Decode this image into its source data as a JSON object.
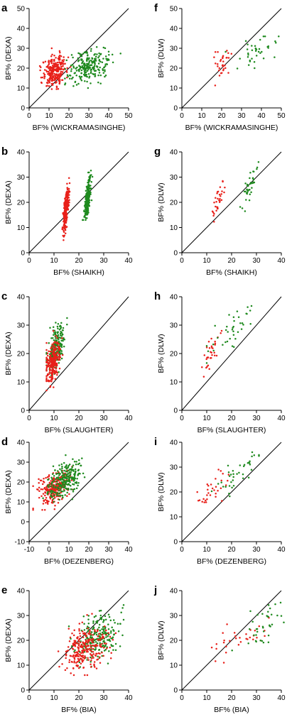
{
  "colors": {
    "group_1": "#e8201a",
    "group_2": "#1f8a1f"
  },
  "chart_data": [
    {
      "letter": "a",
      "type": "scatter",
      "xlabel": "BF% (WICKRAMASINGHE)",
      "ylabel": "BF% (DEXA)",
      "xlim": [
        0,
        50
      ],
      "ylim": [
        0,
        50
      ],
      "xticks": [
        "0",
        "10",
        "20",
        "30",
        "40",
        "50"
      ],
      "yticks": [
        "0",
        "10",
        "20",
        "30",
        "40",
        "50"
      ],
      "identity_line": true,
      "series": [
        {
          "color_key": "group_1",
          "cluster": {
            "cx": 13,
            "cy": 19,
            "sx": 3,
            "sy": 4,
            "r": 0.25,
            "n": 260,
            "xmin": 5,
            "xmax": 25,
            "ymin": 8,
            "ymax": 30
          }
        },
        {
          "color_key": "group_2",
          "cluster": {
            "cx": 30,
            "cy": 21,
            "sx": 5,
            "sy": 4,
            "r": 0.3,
            "n": 240,
            "xmin": 18,
            "xmax": 51,
            "ymin": 10,
            "ymax": 35
          }
        }
      ]
    },
    {
      "letter": "f",
      "type": "scatter",
      "xlabel": "BF% (WICKRAMASINGHE)",
      "ylabel": "BF% (DLW)",
      "xlim": [
        0,
        50
      ],
      "ylim": [
        0,
        50
      ],
      "xticks": [
        "0",
        "10",
        "20",
        "30",
        "40",
        "50"
      ],
      "yticks": [
        "0",
        "10",
        "20",
        "30",
        "40",
        "50"
      ],
      "identity_line": true,
      "series": [
        {
          "color_key": "group_1",
          "cluster": {
            "cx": 20,
            "cy": 21,
            "sx": 2.5,
            "sy": 4,
            "r": 0.3,
            "n": 32,
            "xmin": 14,
            "xmax": 27,
            "ymin": 11,
            "ymax": 31
          }
        },
        {
          "color_key": "group_2",
          "cluster": {
            "cx": 35,
            "cy": 26,
            "sx": 6,
            "sy": 5,
            "r": 0.6,
            "n": 38,
            "xmin": 22,
            "xmax": 51,
            "ymin": 14,
            "ymax": 36
          }
        }
      ]
    },
    {
      "letter": "b",
      "type": "scatter",
      "xlabel": "BF% (SHAIKH)",
      "ylabel": "BF% (DEXA)",
      "xlim": [
        0,
        40
      ],
      "ylim": [
        0,
        40
      ],
      "xticks": [
        "0",
        "10",
        "20",
        "30",
        "40"
      ],
      "yticks": [
        "0",
        "10",
        "20",
        "30",
        "40"
      ],
      "identity_line": true,
      "series": [
        {
          "color_key": "group_1",
          "cluster": {
            "cx": 14.8,
            "cy": 17,
            "sx": 0.6,
            "sy": 4.5,
            "r": 0.7,
            "n": 260,
            "xmin": 13,
            "xmax": 17,
            "ymin": 5,
            "ymax": 30
          }
        },
        {
          "color_key": "group_2",
          "cluster": {
            "cx": 23.5,
            "cy": 21,
            "sx": 0.7,
            "sy": 4.5,
            "r": 0.7,
            "n": 240,
            "xmin": 21.5,
            "xmax": 26,
            "ymin": 13,
            "ymax": 35
          }
        }
      ]
    },
    {
      "letter": "g",
      "type": "scatter",
      "xlabel": "BF% (SHAIKH)",
      "ylabel": "BF% (DLW)",
      "xlim": [
        0,
        40
      ],
      "ylim": [
        0,
        40
      ],
      "xticks": [
        "0",
        "10",
        "20",
        "30",
        "40"
      ],
      "yticks": [
        "0",
        "10",
        "20",
        "30",
        "40"
      ],
      "identity_line": true,
      "series": [
        {
          "color_key": "group_1",
          "cluster": {
            "cx": 15,
            "cy": 21,
            "sx": 1.5,
            "sy": 4,
            "r": 0.85,
            "n": 32,
            "xmin": 12,
            "xmax": 19,
            "ymin": 12,
            "ymax": 31
          }
        },
        {
          "color_key": "group_2",
          "cluster": {
            "cx": 27,
            "cy": 26,
            "sx": 1.8,
            "sy": 5,
            "r": 0.85,
            "n": 38,
            "xmin": 23,
            "xmax": 31,
            "ymin": 15,
            "ymax": 36
          }
        }
      ]
    },
    {
      "letter": "c",
      "type": "scatter",
      "xlabel": "BF% (SLAUGHTER)",
      "ylabel": "BF% (DEXA)",
      "xlim": [
        0,
        40
      ],
      "ylim": [
        0,
        40
      ],
      "xticks": [
        "0",
        "10",
        "20",
        "30",
        "40"
      ],
      "yticks": [
        "0",
        "10",
        "20",
        "30",
        "40"
      ],
      "identity_line": true,
      "series": [
        {
          "color_key": "group_2",
          "cluster": {
            "cx": 11,
            "cy": 22,
            "sx": 1.8,
            "sy": 4,
            "r": 0.55,
            "n": 240,
            "xmin": 7,
            "xmax": 22,
            "ymin": 11,
            "ymax": 35
          }
        },
        {
          "color_key": "group_1",
          "cluster": {
            "cx": 9.5,
            "cy": 17,
            "sx": 1.5,
            "sy": 3.5,
            "r": 0.45,
            "n": 260,
            "xmin": 7,
            "xmax": 16,
            "ymin": 7,
            "ymax": 29
          }
        }
      ]
    },
    {
      "letter": "h",
      "type": "scatter",
      "xlabel": "BF% (SLAUGHTER)",
      "ylabel": "BF% (DLW)",
      "xlim": [
        0,
        40
      ],
      "ylim": [
        0,
        40
      ],
      "xticks": [
        "0",
        "10",
        "20",
        "30",
        "40"
      ],
      "yticks": [
        "0",
        "10",
        "20",
        "30",
        "40"
      ],
      "identity_line": true,
      "series": [
        {
          "color_key": "group_1",
          "cluster": {
            "cx": 11.5,
            "cy": 20,
            "sx": 2,
            "sy": 4,
            "r": 0.7,
            "n": 32,
            "xmin": 8,
            "xmax": 16,
            "ymin": 11,
            "ymax": 28
          }
        },
        {
          "color_key": "group_2",
          "cluster": {
            "cx": 19,
            "cy": 27,
            "sx": 5,
            "sy": 5,
            "r": 0.85,
            "n": 38,
            "xmin": 10,
            "xmax": 28,
            "ymin": 15,
            "ymax": 37
          }
        }
      ]
    },
    {
      "letter": "d",
      "type": "scatter",
      "xlabel": "BF% (DEZENBERG)",
      "ylabel": "BF% (DEXA)",
      "xlim": [
        -10,
        40
      ],
      "ylim": [
        -10,
        40
      ],
      "xticks": [
        "-10",
        "0",
        "10",
        "20",
        "30",
        "40"
      ],
      "yticks": [
        "-10",
        "0",
        "10",
        "20",
        "30",
        "40"
      ],
      "identity_line": true,
      "series": [
        {
          "color_key": "group_1",
          "cluster": {
            "cx": 2,
            "cy": 17,
            "sx": 4,
            "sy": 4,
            "r": 0.3,
            "n": 260,
            "xmin": -8,
            "xmax": 12,
            "ymin": 6,
            "ymax": 29
          }
        },
        {
          "color_key": "group_2",
          "cluster": {
            "cx": 8,
            "cy": 21,
            "sx": 4.5,
            "sy": 4.5,
            "r": 0.45,
            "n": 240,
            "xmin": -3,
            "xmax": 20,
            "ymin": 10,
            "ymax": 35
          }
        }
      ]
    },
    {
      "letter": "i",
      "type": "scatter",
      "xlabel": "BF% (DEZENBERG)",
      "ylabel": "BF% (DLW)",
      "xlim": [
        0,
        40
      ],
      "ylim": [
        0,
        40
      ],
      "xticks": [
        "0",
        "10",
        "20",
        "30",
        "40"
      ],
      "yticks": [
        "0",
        "10",
        "20",
        "30",
        "40"
      ],
      "identity_line": true,
      "series": [
        {
          "color_key": "group_1",
          "cluster": {
            "cx": 12,
            "cy": 20,
            "sx": 3.5,
            "sy": 4,
            "r": 0.75,
            "n": 32,
            "xmin": 5,
            "xmax": 20,
            "ymin": 11,
            "ymax": 29
          }
        },
        {
          "color_key": "group_2",
          "cluster": {
            "cx": 22,
            "cy": 27,
            "sx": 5,
            "sy": 5,
            "r": 0.85,
            "n": 38,
            "xmin": 12,
            "xmax": 31,
            "ymin": 15,
            "ymax": 37
          }
        }
      ]
    },
    {
      "letter": "e",
      "type": "scatter",
      "xlabel": "BF% (BIA)",
      "ylabel": "BF% (DEXA)",
      "xlim": [
        0,
        40
      ],
      "ylim": [
        0,
        40
      ],
      "xticks": [
        "0",
        "10",
        "20",
        "30",
        "40"
      ],
      "yticks": [
        "0",
        "10",
        "20",
        "30",
        "40"
      ],
      "identity_line": true,
      "series": [
        {
          "color_key": "group_2",
          "cluster": {
            "cx": 28,
            "cy": 21,
            "sx": 4.5,
            "sy": 4.5,
            "r": 0.35,
            "n": 240,
            "xmin": 16,
            "xmax": 38,
            "ymin": 9,
            "ymax": 35
          }
        },
        {
          "color_key": "group_1",
          "cluster": {
            "cx": 23,
            "cy": 17,
            "sx": 4.5,
            "sy": 4.5,
            "r": 0.3,
            "n": 260,
            "xmin": 11,
            "xmax": 35,
            "ymin": 6,
            "ymax": 32
          }
        }
      ]
    },
    {
      "letter": "j",
      "type": "scatter",
      "xlabel": "BF% (BIA)",
      "ylabel": "BF% (DLW)",
      "xlim": [
        0,
        40
      ],
      "ylim": [
        0,
        40
      ],
      "xticks": [
        "0",
        "10",
        "20",
        "30",
        "40"
      ],
      "yticks": [
        "0",
        "10",
        "20",
        "30",
        "40"
      ],
      "identity_line": true,
      "series": [
        {
          "color_key": "group_1",
          "cluster": {
            "cx": 24,
            "cy": 21,
            "sx": 6,
            "sy": 4,
            "r": 0.6,
            "n": 32,
            "xmin": 8,
            "xmax": 36,
            "ymin": 11,
            "ymax": 30
          }
        },
        {
          "color_key": "group_2",
          "cluster": {
            "cx": 33,
            "cy": 27,
            "sx": 5,
            "sy": 5,
            "r": 0.6,
            "n": 38,
            "xmin": 20,
            "xmax": 41,
            "ymin": 14,
            "ymax": 37
          }
        }
      ]
    }
  ]
}
